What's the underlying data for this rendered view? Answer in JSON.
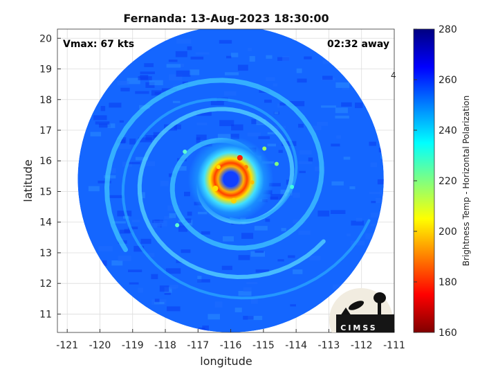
{
  "chart_data": {
    "type": "heatmap",
    "title": "Fernanda: 13-Aug-2023 18:30:00",
    "xlabel": "longitude",
    "ylabel": "latitude",
    "xlim": [
      -121.3,
      -111
    ],
    "ylim": [
      10.4,
      20.3
    ],
    "x_ticks": [
      -121,
      -120,
      -119,
      -118,
      -117,
      -116,
      -115,
      -114,
      -113,
      -112,
      -111
    ],
    "y_ticks": [
      11,
      12,
      13,
      14,
      15,
      16,
      17,
      18,
      19,
      20
    ],
    "grid": true,
    "storm_center": {
      "lon": -116.0,
      "lat": 15.4
    },
    "swath_radius_deg": 5.0,
    "annotations": {
      "vmax": "Vmax: 67 kts",
      "time_offset": "02:32 away",
      "stray_mark": "4"
    },
    "colorbar": {
      "label": "Brightness Temp - Horizontal Polarization",
      "range": [
        160,
        280
      ],
      "ticks": [
        160,
        180,
        200,
        220,
        240,
        260,
        280
      ],
      "colors": [
        "#800000",
        "#ff0000",
        "#ff8000",
        "#ffff00",
        "#80ff80",
        "#00ffff",
        "#0080ff",
        "#0000ff",
        "#000080"
      ]
    },
    "logo_text": "CIMSS"
  }
}
